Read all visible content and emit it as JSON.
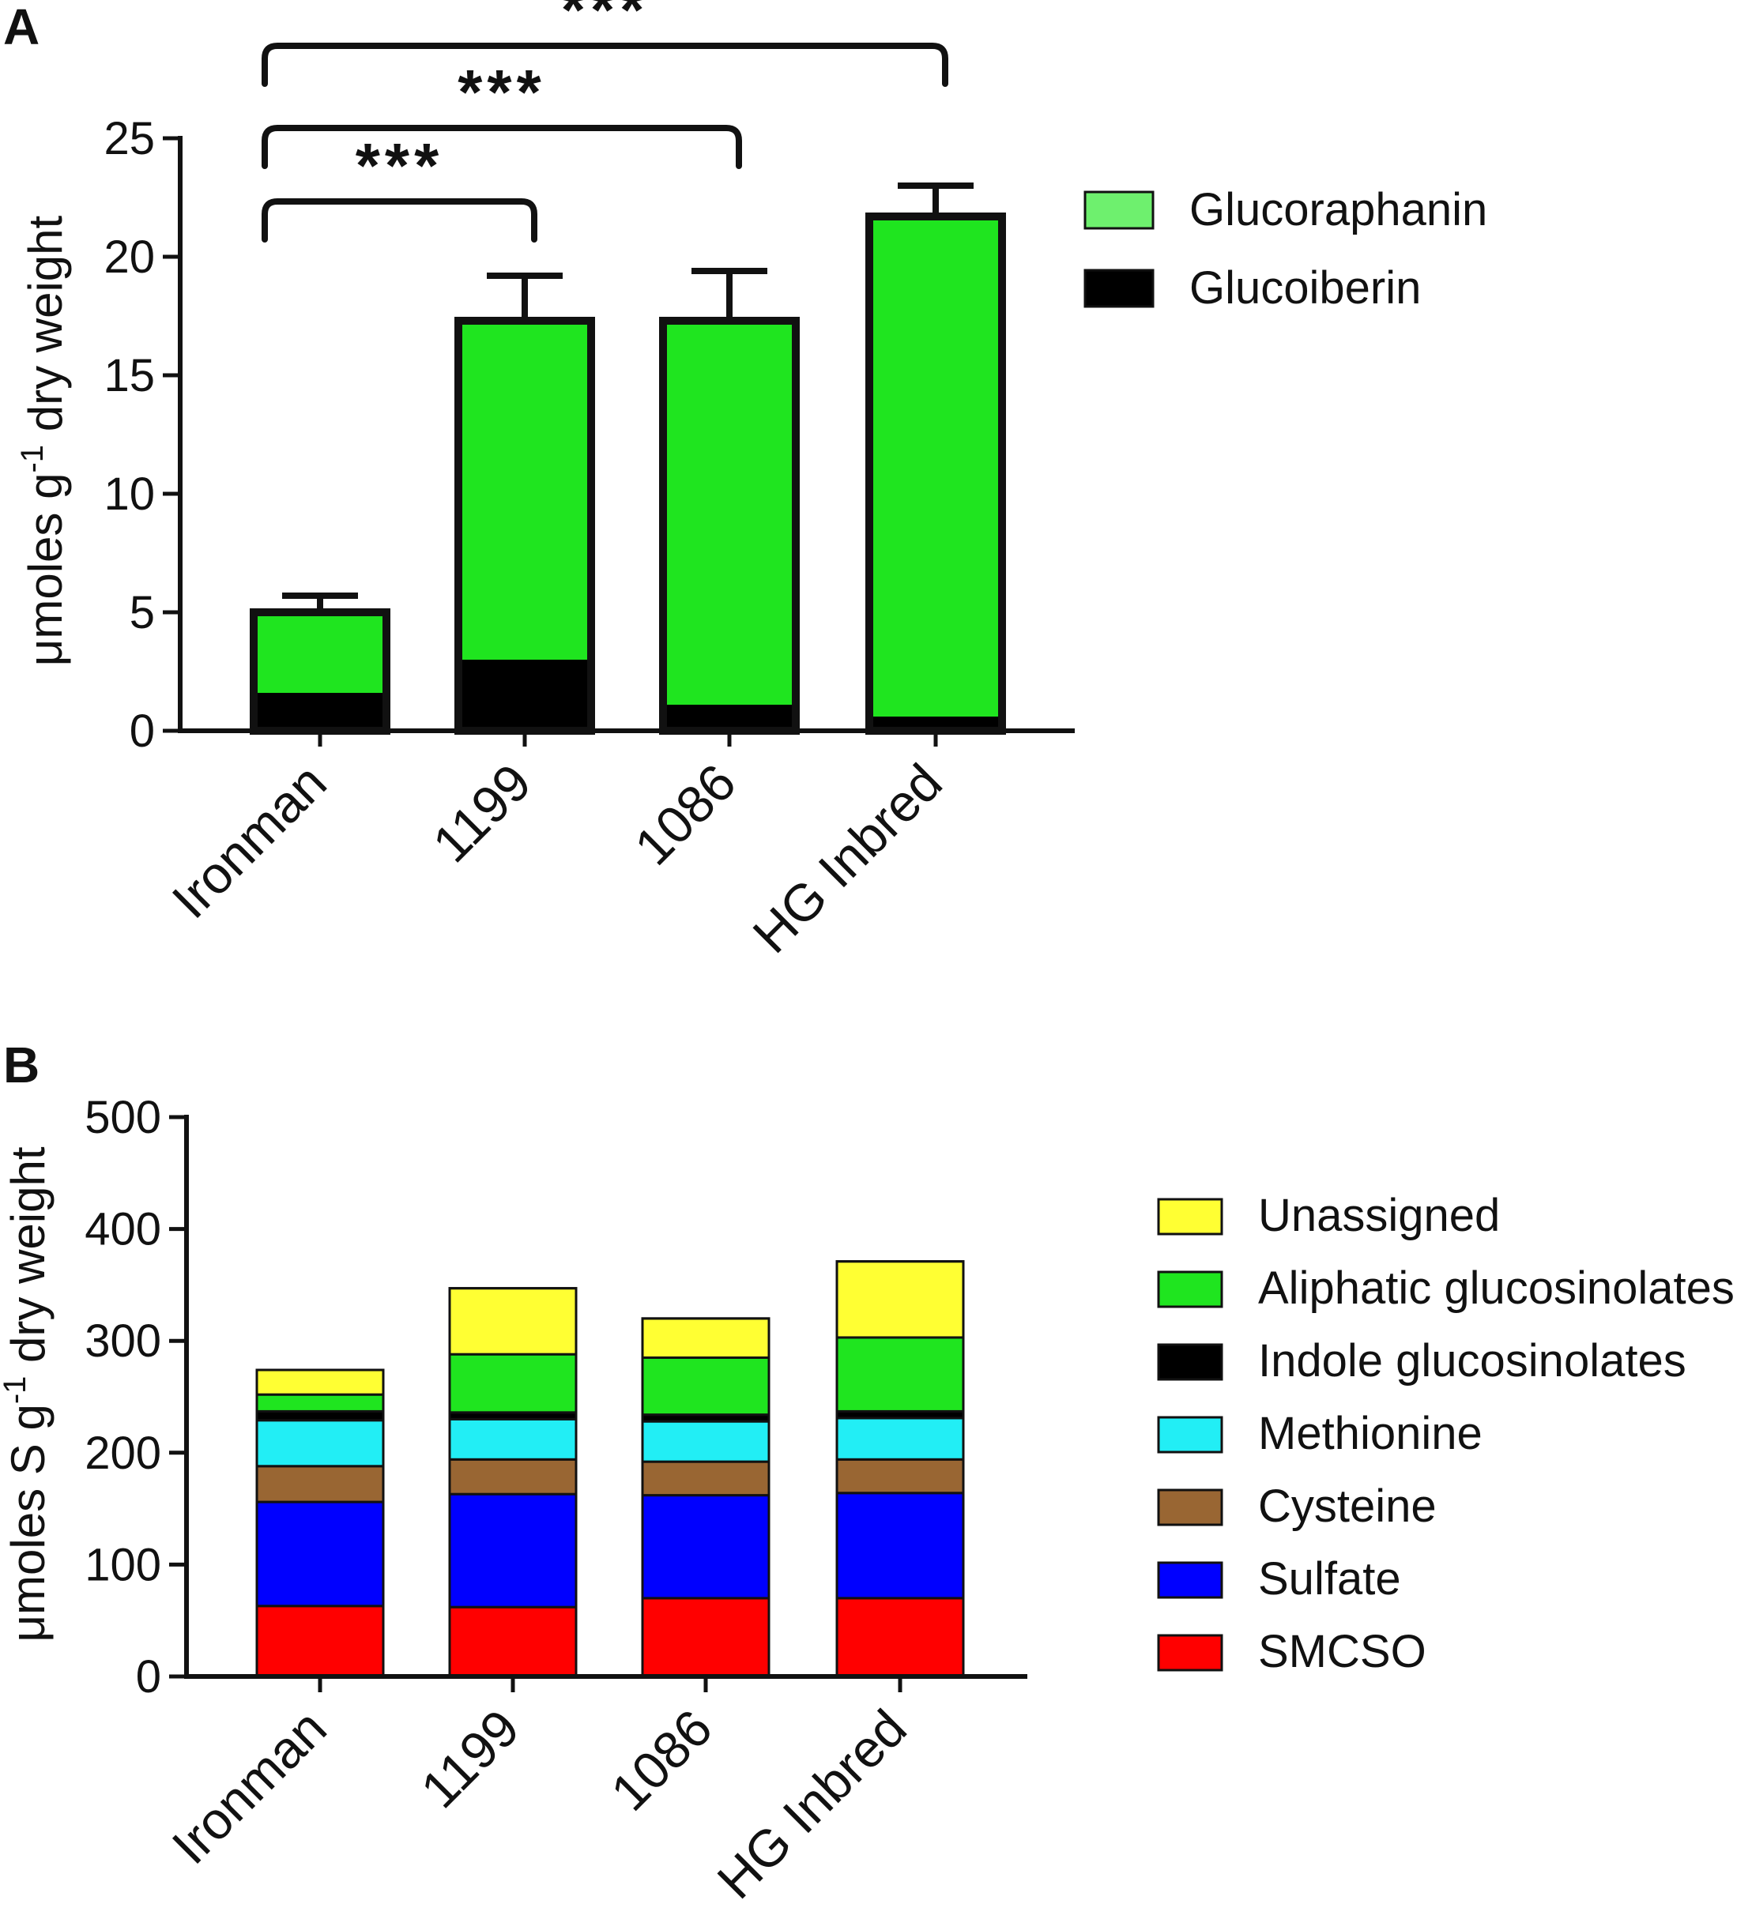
{
  "chart_data": [
    {
      "type": "bar",
      "stacked": true,
      "panel": "A",
      "categories": [
        "Ironman",
        "1199",
        "1086",
        "HG Inbred"
      ],
      "ylabel_main": "μmoles g",
      "ylabel_sup": "-1",
      "ylabel_rest": " dry weight",
      "ylim": [
        0,
        25
      ],
      "yticks": [
        0,
        5,
        10,
        15,
        20,
        25
      ],
      "series": [
        {
          "name": "Glucoiberin",
          "color": "#000000",
          "values": [
            1.6,
            3.0,
            1.1,
            0.6
          ]
        },
        {
          "name": "Glucoraphanin",
          "color": "#1fe51f",
          "values": [
            3.4,
            14.3,
            16.2,
            21.1
          ]
        }
      ],
      "legend_colors": {
        "Glucoraphanin": "#6ef06e",
        "Glucoiberin": "#000000"
      },
      "error_bars": [
        5.7,
        19.2,
        19.4,
        23.0
      ],
      "significance": [
        {
          "from": "Ironman",
          "to": "1199",
          "label": "***"
        },
        {
          "from": "Ironman",
          "to": "1086",
          "label": "***"
        },
        {
          "from": "Ironman",
          "to": "HG Inbred",
          "label": "***"
        }
      ]
    },
    {
      "type": "bar",
      "stacked": true,
      "panel": "B",
      "categories": [
        "Ironman",
        "1199",
        "1086",
        "HG Inbred"
      ],
      "ylabel_main": "μmoles S g",
      "ylabel_sup": "-1",
      "ylabel_rest": " dry weight",
      "ylim": [
        0,
        500
      ],
      "yticks": [
        0,
        100,
        200,
        300,
        400,
        500
      ],
      "series": [
        {
          "name": "SMCSO",
          "color": "#ff0000",
          "values": [
            63,
            62,
            70,
            70
          ]
        },
        {
          "name": "Sulfate",
          "color": "#0000ff",
          "values": [
            93,
            101,
            92,
            94
          ]
        },
        {
          "name": "Cysteine",
          "color": "#996633",
          "values": [
            32,
            31,
            30,
            30
          ]
        },
        {
          "name": "Methionine",
          "color": "#22eef5",
          "values": [
            41,
            36,
            36,
            37
          ]
        },
        {
          "name": "Indole glucosinolates",
          "color": "#000000",
          "values": [
            8,
            6,
            6,
            6
          ]
        },
        {
          "name": "Aliphatic glucosinolates",
          "color": "#1fe51f",
          "values": [
            15,
            52,
            51,
            66
          ]
        },
        {
          "name": "Unassigned",
          "color": "#ffff33",
          "values": [
            22,
            59,
            35,
            68
          ]
        }
      ]
    }
  ],
  "panels": {
    "a_letter": "A",
    "b_letter": "B"
  }
}
